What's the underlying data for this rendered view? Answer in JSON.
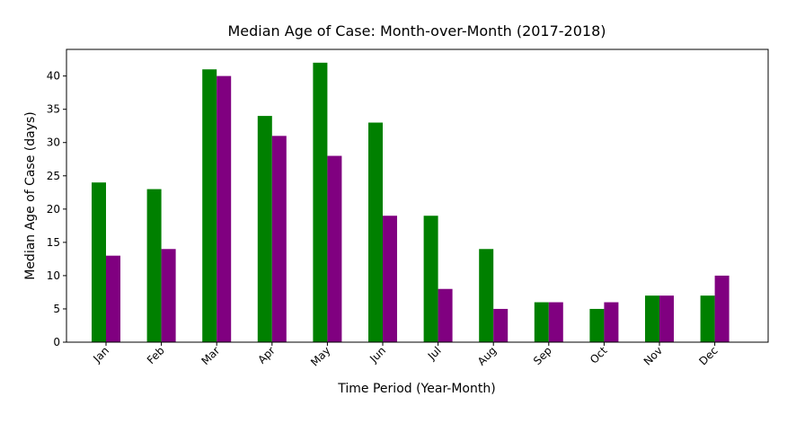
{
  "chart_data": {
    "type": "bar",
    "title": "Median Age of Case: Month-over-Month (2017-2018)",
    "xlabel": "Time Period (Year-Month)",
    "ylabel": "Median Age of Case (days)",
    "categories": [
      "Jan",
      "Feb",
      "Mar",
      "Apr",
      "May",
      "Jun",
      "Jul",
      "Aug",
      "Sep",
      "Oct",
      "Nov",
      "Dec"
    ],
    "series": [
      {
        "color": "#008000",
        "values": [
          24,
          23,
          41,
          34,
          42,
          33,
          19,
          14,
          6,
          5,
          7,
          7
        ]
      },
      {
        "color": "#800080",
        "values": [
          13,
          14,
          40,
          31,
          28,
          19,
          8,
          5,
          6,
          6,
          7,
          10
        ]
      }
    ],
    "ylim": [
      0,
      44
    ],
    "yticks": [
      0,
      5,
      10,
      15,
      20,
      25,
      30,
      35,
      40
    ],
    "grid": false,
    "legend": "none"
  }
}
